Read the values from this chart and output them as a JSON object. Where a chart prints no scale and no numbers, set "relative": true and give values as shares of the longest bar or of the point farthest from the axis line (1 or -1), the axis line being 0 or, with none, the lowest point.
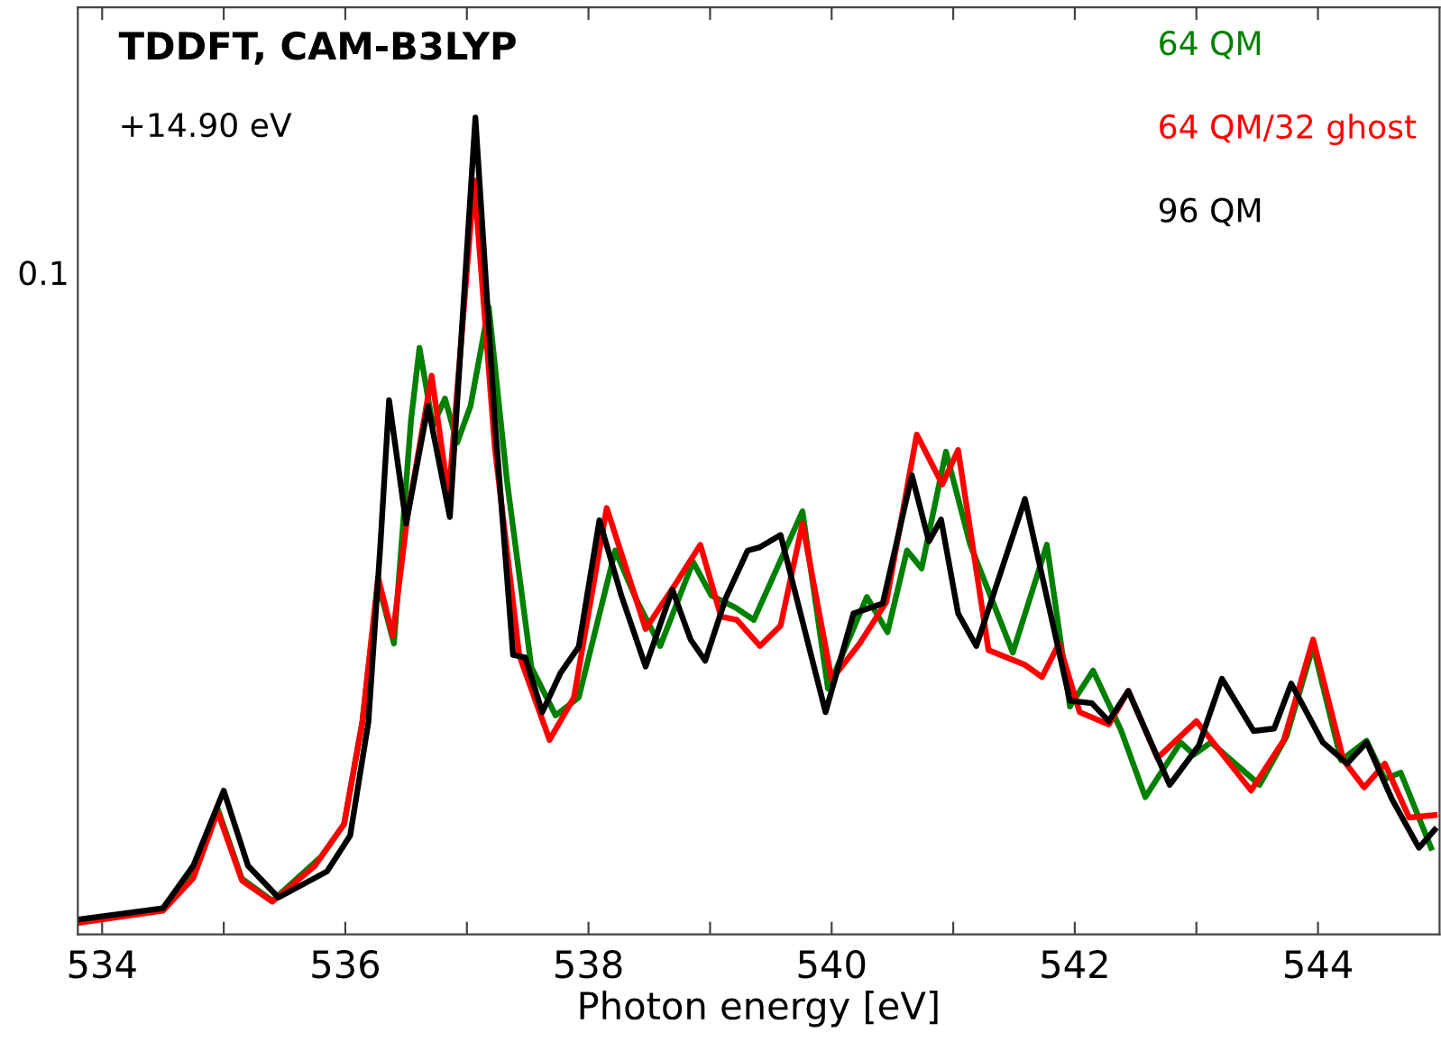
{
  "chart_data": {
    "type": "line",
    "title": "TDDFT, CAM-B3LYP",
    "xlabel": "Photon energy [eV]",
    "annotations": [
      "+14.90 eV",
      "0.1"
    ],
    "relative": true,
    "legend": "top right",
    "line_style": "solid",
    "marker": "none",
    "grid": false,
    "xlim": [
      533.8,
      545.0
    ],
    "xticks": [
      534,
      {
        "value": 535,
        "label": null
      },
      536,
      {
        "value": 537,
        "label": null
      },
      538,
      {
        "value": 539,
        "label": null
      },
      540,
      {
        "value": 541,
        "label": null
      },
      542,
      {
        "value": 543,
        "label": null
      },
      544
    ],
    "series": [
      {
        "name": "64 QM",
        "color": "#008000",
        "x": [
          533.8,
          534.5,
          534.75,
          534.95,
          535.15,
          535.4,
          535.8,
          535.99,
          536.14,
          536.27,
          536.4,
          536.54,
          536.61,
          536.72,
          536.82,
          536.92,
          537.03,
          537.18,
          537.33,
          537.53,
          537.73,
          537.92,
          538.22,
          538.4,
          538.59,
          538.86,
          539.01,
          539.21,
          539.36,
          539.76,
          539.97,
          540.29,
          540.46,
          540.62,
          540.74,
          540.94,
          541.14,
          541.49,
          541.77,
          541.96,
          542.15,
          542.38,
          542.58,
          542.87,
          542.98,
          543.12,
          543.52,
          543.74,
          543.96,
          544.19,
          544.4,
          544.55,
          544.68,
          544.93
        ],
        "values": [
          0.016,
          0.031,
          0.073,
          0.154,
          0.068,
          0.041,
          0.095,
          0.135,
          0.26,
          0.43,
          0.356,
          0.629,
          0.718,
          0.623,
          0.656,
          0.602,
          0.647,
          0.768,
          0.555,
          0.327,
          0.268,
          0.29,
          0.47,
          0.408,
          0.353,
          0.456,
          0.415,
          0.4,
          0.385,
          0.518,
          0.301,
          0.413,
          0.37,
          0.47,
          0.448,
          0.591,
          0.477,
          0.345,
          0.477,
          0.279,
          0.323,
          0.25,
          0.168,
          0.235,
          0.22,
          0.235,
          0.183,
          0.242,
          0.353,
          0.213,
          0.237,
          0.19,
          0.198,
          0.106
        ]
      },
      {
        "name": "64 QM/32 ghost",
        "color": "#ff0000",
        "x": [
          533.8,
          534.5,
          534.75,
          534.95,
          535.15,
          535.4,
          535.75,
          535.99,
          536.14,
          536.27,
          536.39,
          536.51,
          536.71,
          536.85,
          537.06,
          537.23,
          537.43,
          537.68,
          537.88,
          538.15,
          538.47,
          538.72,
          538.92,
          539.09,
          539.22,
          539.41,
          539.58,
          539.76,
          540.0,
          540.23,
          540.45,
          540.7,
          540.91,
          541.04,
          541.29,
          541.59,
          541.73,
          541.87,
          542.04,
          542.28,
          542.44,
          542.68,
          543.0,
          543.45,
          543.72,
          543.96,
          544.21,
          544.38,
          544.55,
          544.75,
          544.96
        ],
        "values": [
          0.014,
          0.029,
          0.069,
          0.15,
          0.066,
          0.04,
          0.084,
          0.135,
          0.26,
          0.437,
          0.365,
          0.511,
          0.684,
          0.536,
          0.923,
          0.596,
          0.342,
          0.238,
          0.29,
          0.522,
          0.374,
          0.43,
          0.477,
          0.389,
          0.385,
          0.353,
          0.378,
          0.503,
          0.312,
          0.356,
          0.407,
          0.612,
          0.551,
          0.593,
          0.348,
          0.33,
          0.315,
          0.356,
          0.272,
          0.257,
          0.298,
          0.216,
          0.261,
          0.176,
          0.238,
          0.361,
          0.213,
          0.18,
          0.209,
          0.143,
          0.146
        ]
      },
      {
        "name": "96 QM",
        "color": "#000000",
        "x": [
          533.8,
          534.5,
          534.75,
          535.0,
          535.2,
          535.45,
          535.85,
          536.04,
          536.19,
          536.29,
          536.36,
          536.5,
          536.68,
          536.86,
          537.07,
          537.23,
          537.38,
          537.48,
          537.62,
          537.77,
          537.92,
          538.09,
          538.27,
          538.47,
          538.69,
          538.84,
          538.96,
          539.13,
          539.31,
          539.41,
          539.58,
          539.95,
          540.18,
          540.42,
          540.66,
          540.8,
          540.9,
          541.04,
          541.19,
          541.59,
          541.96,
          542.14,
          542.28,
          542.44,
          542.78,
          543.02,
          543.21,
          543.47,
          543.64,
          543.78,
          544.04,
          544.24,
          544.4,
          544.61,
          544.83,
          544.96
        ],
        "values": [
          0.018,
          0.032,
          0.084,
          0.176,
          0.084,
          0.045,
          0.077,
          0.121,
          0.26,
          0.48,
          0.654,
          0.503,
          0.647,
          0.511,
          1.0,
          0.629,
          0.342,
          0.339,
          0.272,
          0.32,
          0.352,
          0.507,
          0.415,
          0.328,
          0.422,
          0.361,
          0.335,
          0.412,
          0.47,
          0.474,
          0.489,
          0.272,
          0.393,
          0.405,
          0.562,
          0.481,
          0.508,
          0.393,
          0.353,
          0.533,
          0.286,
          0.283,
          0.261,
          0.298,
          0.183,
          0.231,
          0.313,
          0.249,
          0.252,
          0.307,
          0.235,
          0.209,
          0.235,
          0.165,
          0.106,
          0.128
        ]
      }
    ]
  }
}
